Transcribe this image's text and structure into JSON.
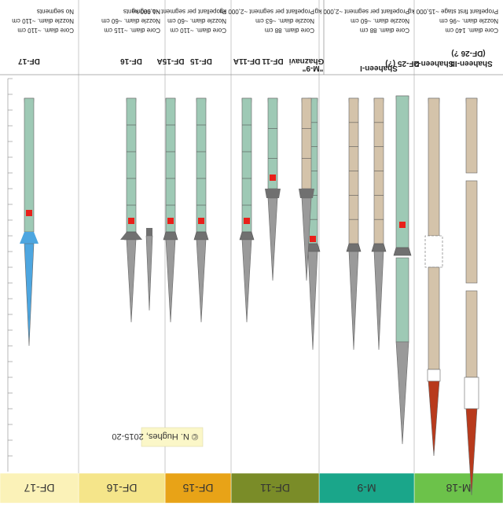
{
  "groups": [
    {
      "name": "M-18",
      "color": "#6cc24a",
      "specs": [
        "Core diam. 140 cm",
        "Nozzle diam. ~96 cm",
        "Propellant first stage ~15,000 kg"
      ],
      "missiles": [
        {
          "label": "Shaheen-III",
          "sublabel": "(DF-26 ?)",
          "kind": "three-stage",
          "body": "#d4c3aa",
          "exhaust": "#b83a1c"
        },
        {
          "label": "Shaheen-2",
          "kind": "two-stage",
          "body": "#d4c3aa",
          "exhaust": "#b83a1c"
        },
        {
          "label": "DF-25 (?)",
          "kind": "two-stage-tall",
          "body": "#9ec9b5"
        }
      ]
    },
    {
      "name": "M-9",
      "color": "#1aa68a",
      "specs": [
        "Core diam. 88 cm",
        "Nozzle diam. ~60 cm",
        "Propellant per segment ~2,000 kg"
      ],
      "missiles": [
        {
          "label": "Shaheen-I",
          "kind": "single",
          "body": "#d4c3aa"
        },
        {
          "label": "",
          "kind": "single",
          "body": "#d4c3aa"
        },
        {
          "label": "\"M-9\"",
          "kind": "single",
          "body": "#9ec9b5"
        }
      ]
    },
    {
      "name": "DF-11",
      "color": "#7a8c28",
      "specs": [
        "Core diam. 88 cm",
        "Nozzle diam. ~63 cm",
        "Propellant per segment ~2,000 kg"
      ],
      "missiles": [
        {
          "label": "Ghaznavi",
          "kind": "short",
          "body": "#d4c3aa"
        },
        {
          "label": "DF-11",
          "kind": "short",
          "body": "#9ec9b5"
        },
        {
          "label": "DF-11A",
          "kind": "medium",
          "body": "#9ec9b5"
        }
      ]
    },
    {
      "name": "DF-15",
      "color": "#e8a317",
      "specs": [
        "Core diam. ~110 cm",
        "Nozzle diam. ~60 cm",
        "Propellant per segment ~1,000 kg"
      ],
      "missiles": [
        {
          "label": "DF-15",
          "kind": "medium",
          "body": "#9ec9b5"
        },
        {
          "label": "DF-15A",
          "kind": "medium",
          "body": "#9ec9b5"
        }
      ]
    },
    {
      "name": "DF-16",
      "color": "#f5e58a",
      "specs": [
        "Core diam. ~115 cm",
        "Nozzle diam. ~60 cm",
        "No segments"
      ],
      "missiles": [
        {
          "label": "DF-16",
          "kind": "medium",
          "body": "#9ec9b5"
        }
      ]
    },
    {
      "name": "DF-17",
      "color": "#fbf2b8",
      "specs": [
        "Core diam. ~110 cm",
        "Nozzle diam. ~110 cm",
        "No segments"
      ],
      "missiles": [
        {
          "label": "DF-17",
          "kind": "glider",
          "body": "#9ec9b5",
          "glider": "#4da6e0"
        }
      ]
    }
  ],
  "copyright": "© N. Hughes, 2015-20"
}
